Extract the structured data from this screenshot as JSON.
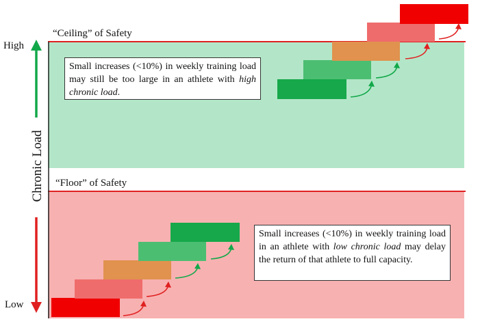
{
  "title_ceiling": "“Ceiling” of Safety",
  "title_floor": "“Floor” of Safety",
  "axis": {
    "label": "Chronic Load",
    "high": "High",
    "low": "Low"
  },
  "colors": {
    "green_zone": "#b3e6c8",
    "red_zone": "#f8b1b1",
    "boundary_line": "#e02020",
    "up_arrow": "#12a84a",
    "down_arrow": "#e02020",
    "step_dark_green": "#16a84a",
    "step_mid_green": "#4cbe72",
    "step_orange": "#e0924e",
    "step_salmon": "#ef6c6c",
    "step_red": "#f00000"
  },
  "callout_top": {
    "part1": "Small increases (<10%) in weekly training load may still be too large in an athlete with ",
    "italic": "high chronic load",
    "part2": "."
  },
  "callout_bottom": {
    "part1": "Small increases (<10%) in weekly training load in an athlete with ",
    "italic": "low chronic load",
    "part2": " may delay the return of that athlete to full capacity."
  }
}
